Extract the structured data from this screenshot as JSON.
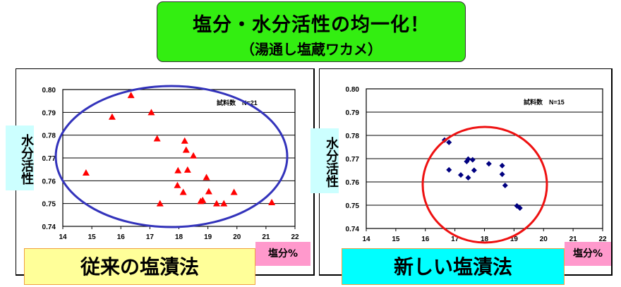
{
  "title": {
    "main": "塩分・水分活性の均一化！",
    "sub": "（湯通し塩蔵ワカメ）"
  },
  "colors": {
    "title_bg": "#33ee11",
    "left_marker": "#ff0000",
    "right_marker": "#000080",
    "left_ellipse": "#3333bb",
    "right_ellipse": "#ee1111"
  },
  "chart_data": [
    {
      "type": "scatter",
      "method_label": "従来の塩漬法",
      "ylabel": "水分活性",
      "xlabel": "塩分%",
      "annotation": "試料数　N=21",
      "marker": "triangle",
      "xlim": [
        14,
        22
      ],
      "ylim": [
        0.74,
        0.8
      ],
      "xticks": [
        "14",
        "15",
        "16",
        "17",
        "18",
        "19",
        "20",
        "21",
        "22"
      ],
      "yticks": [
        "0.74",
        "0.75",
        "0.76",
        "0.77",
        "0.78",
        "0.79",
        "0.80"
      ],
      "grid": true,
      "points": [
        [
          14.8,
          0.7635
        ],
        [
          15.7,
          0.788
        ],
        [
          16.35,
          0.7975
        ],
        [
          17.05,
          0.79
        ],
        [
          17.25,
          0.7785
        ],
        [
          17.35,
          0.75
        ],
        [
          17.95,
          0.758
        ],
        [
          17.97,
          0.7645
        ],
        [
          18.15,
          0.755
        ],
        [
          18.2,
          0.7775
        ],
        [
          18.25,
          0.7735
        ],
        [
          18.3,
          0.7648
        ],
        [
          18.5,
          0.771
        ],
        [
          18.75,
          0.751
        ],
        [
          18.82,
          0.7515
        ],
        [
          18.95,
          0.7615
        ],
        [
          19.03,
          0.7553
        ],
        [
          19.3,
          0.75
        ],
        [
          19.55,
          0.75
        ],
        [
          19.9,
          0.755
        ],
        [
          21.2,
          0.7505
        ]
      ]
    },
    {
      "type": "scatter",
      "method_label": "新しい塩漬法",
      "ylabel": "水分活性",
      "xlabel": "塩分%",
      "annotation": "試料数　N=15",
      "marker": "diamond",
      "xlim": [
        14,
        22
      ],
      "ylim": [
        0.74,
        0.8
      ],
      "xticks": [
        "14",
        "15",
        "16",
        "17",
        "18",
        "19",
        "20",
        "21",
        "22"
      ],
      "yticks": [
        "0.74",
        "0.75",
        "0.76",
        "0.77",
        "0.78",
        "0.79",
        "0.80"
      ],
      "grid": true,
      "points": [
        [
          16.65,
          0.778
        ],
        [
          16.8,
          0.777
        ],
        [
          16.8,
          0.7652
        ],
        [
          17.2,
          0.763
        ],
        [
          17.4,
          0.7688
        ],
        [
          17.45,
          0.7698
        ],
        [
          17.45,
          0.7618
        ],
        [
          17.6,
          0.7695
        ],
        [
          17.65,
          0.765
        ],
        [
          18.15,
          0.7678
        ],
        [
          18.6,
          0.767
        ],
        [
          18.6,
          0.7633
        ],
        [
          18.7,
          0.7585
        ],
        [
          19.1,
          0.7497
        ],
        [
          19.2,
          0.7488
        ]
      ]
    }
  ]
}
